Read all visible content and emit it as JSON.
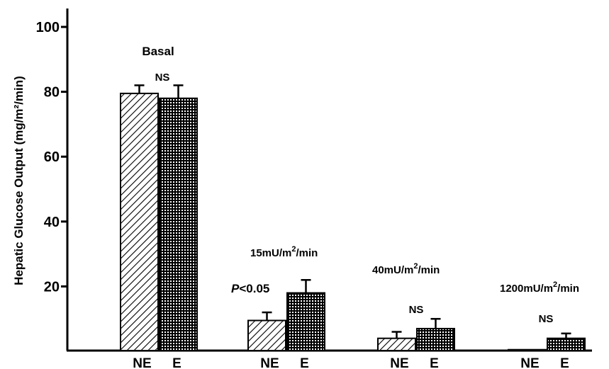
{
  "chart_data": {
    "type": "bar",
    "ylabel": "Hepatic Glucose Output (mg/m²/min)",
    "ylim": [
      0,
      100
    ],
    "yticks": [
      20,
      40,
      60,
      80,
      100
    ],
    "grid": false,
    "groups": [
      {
        "label_parts": [
          "Basal"
        ],
        "significance": "NS",
        "bars": [
          {
            "label": "NE",
            "value": 79.5,
            "error": 2.5,
            "pattern": "diagonal-hatch"
          },
          {
            "label": "E",
            "value": 78.0,
            "error": 4.0,
            "pattern": "crosshatch-dots"
          }
        ]
      },
      {
        "label_parts": [
          "15mU/m",
          "2",
          "/min"
        ],
        "significance": "P<0.05",
        "bars": [
          {
            "label": "NE",
            "value": 9.5,
            "error": 2.5,
            "pattern": "diagonal-hatch"
          },
          {
            "label": "E",
            "value": 18.0,
            "error": 4.0,
            "pattern": "crosshatch-dots"
          }
        ]
      },
      {
        "label_parts": [
          "40mU/m",
          "2",
          "/min"
        ],
        "significance": "NS",
        "bars": [
          {
            "label": "NE",
            "value": 4.0,
            "error": 2.0,
            "pattern": "diagonal-hatch"
          },
          {
            "label": "E",
            "value": 7.0,
            "error": 3.0,
            "pattern": "crosshatch-dots"
          }
        ]
      },
      {
        "label_parts": [
          "1200mU/m",
          "2",
          "/min"
        ],
        "significance": "NS",
        "bars": [
          {
            "label": "NE",
            "value": 0.5,
            "error": 0,
            "pattern": "diagonal-hatch"
          },
          {
            "label": "E",
            "value": 4.0,
            "error": 1.5,
            "pattern": "crosshatch-dots"
          }
        ]
      }
    ]
  }
}
